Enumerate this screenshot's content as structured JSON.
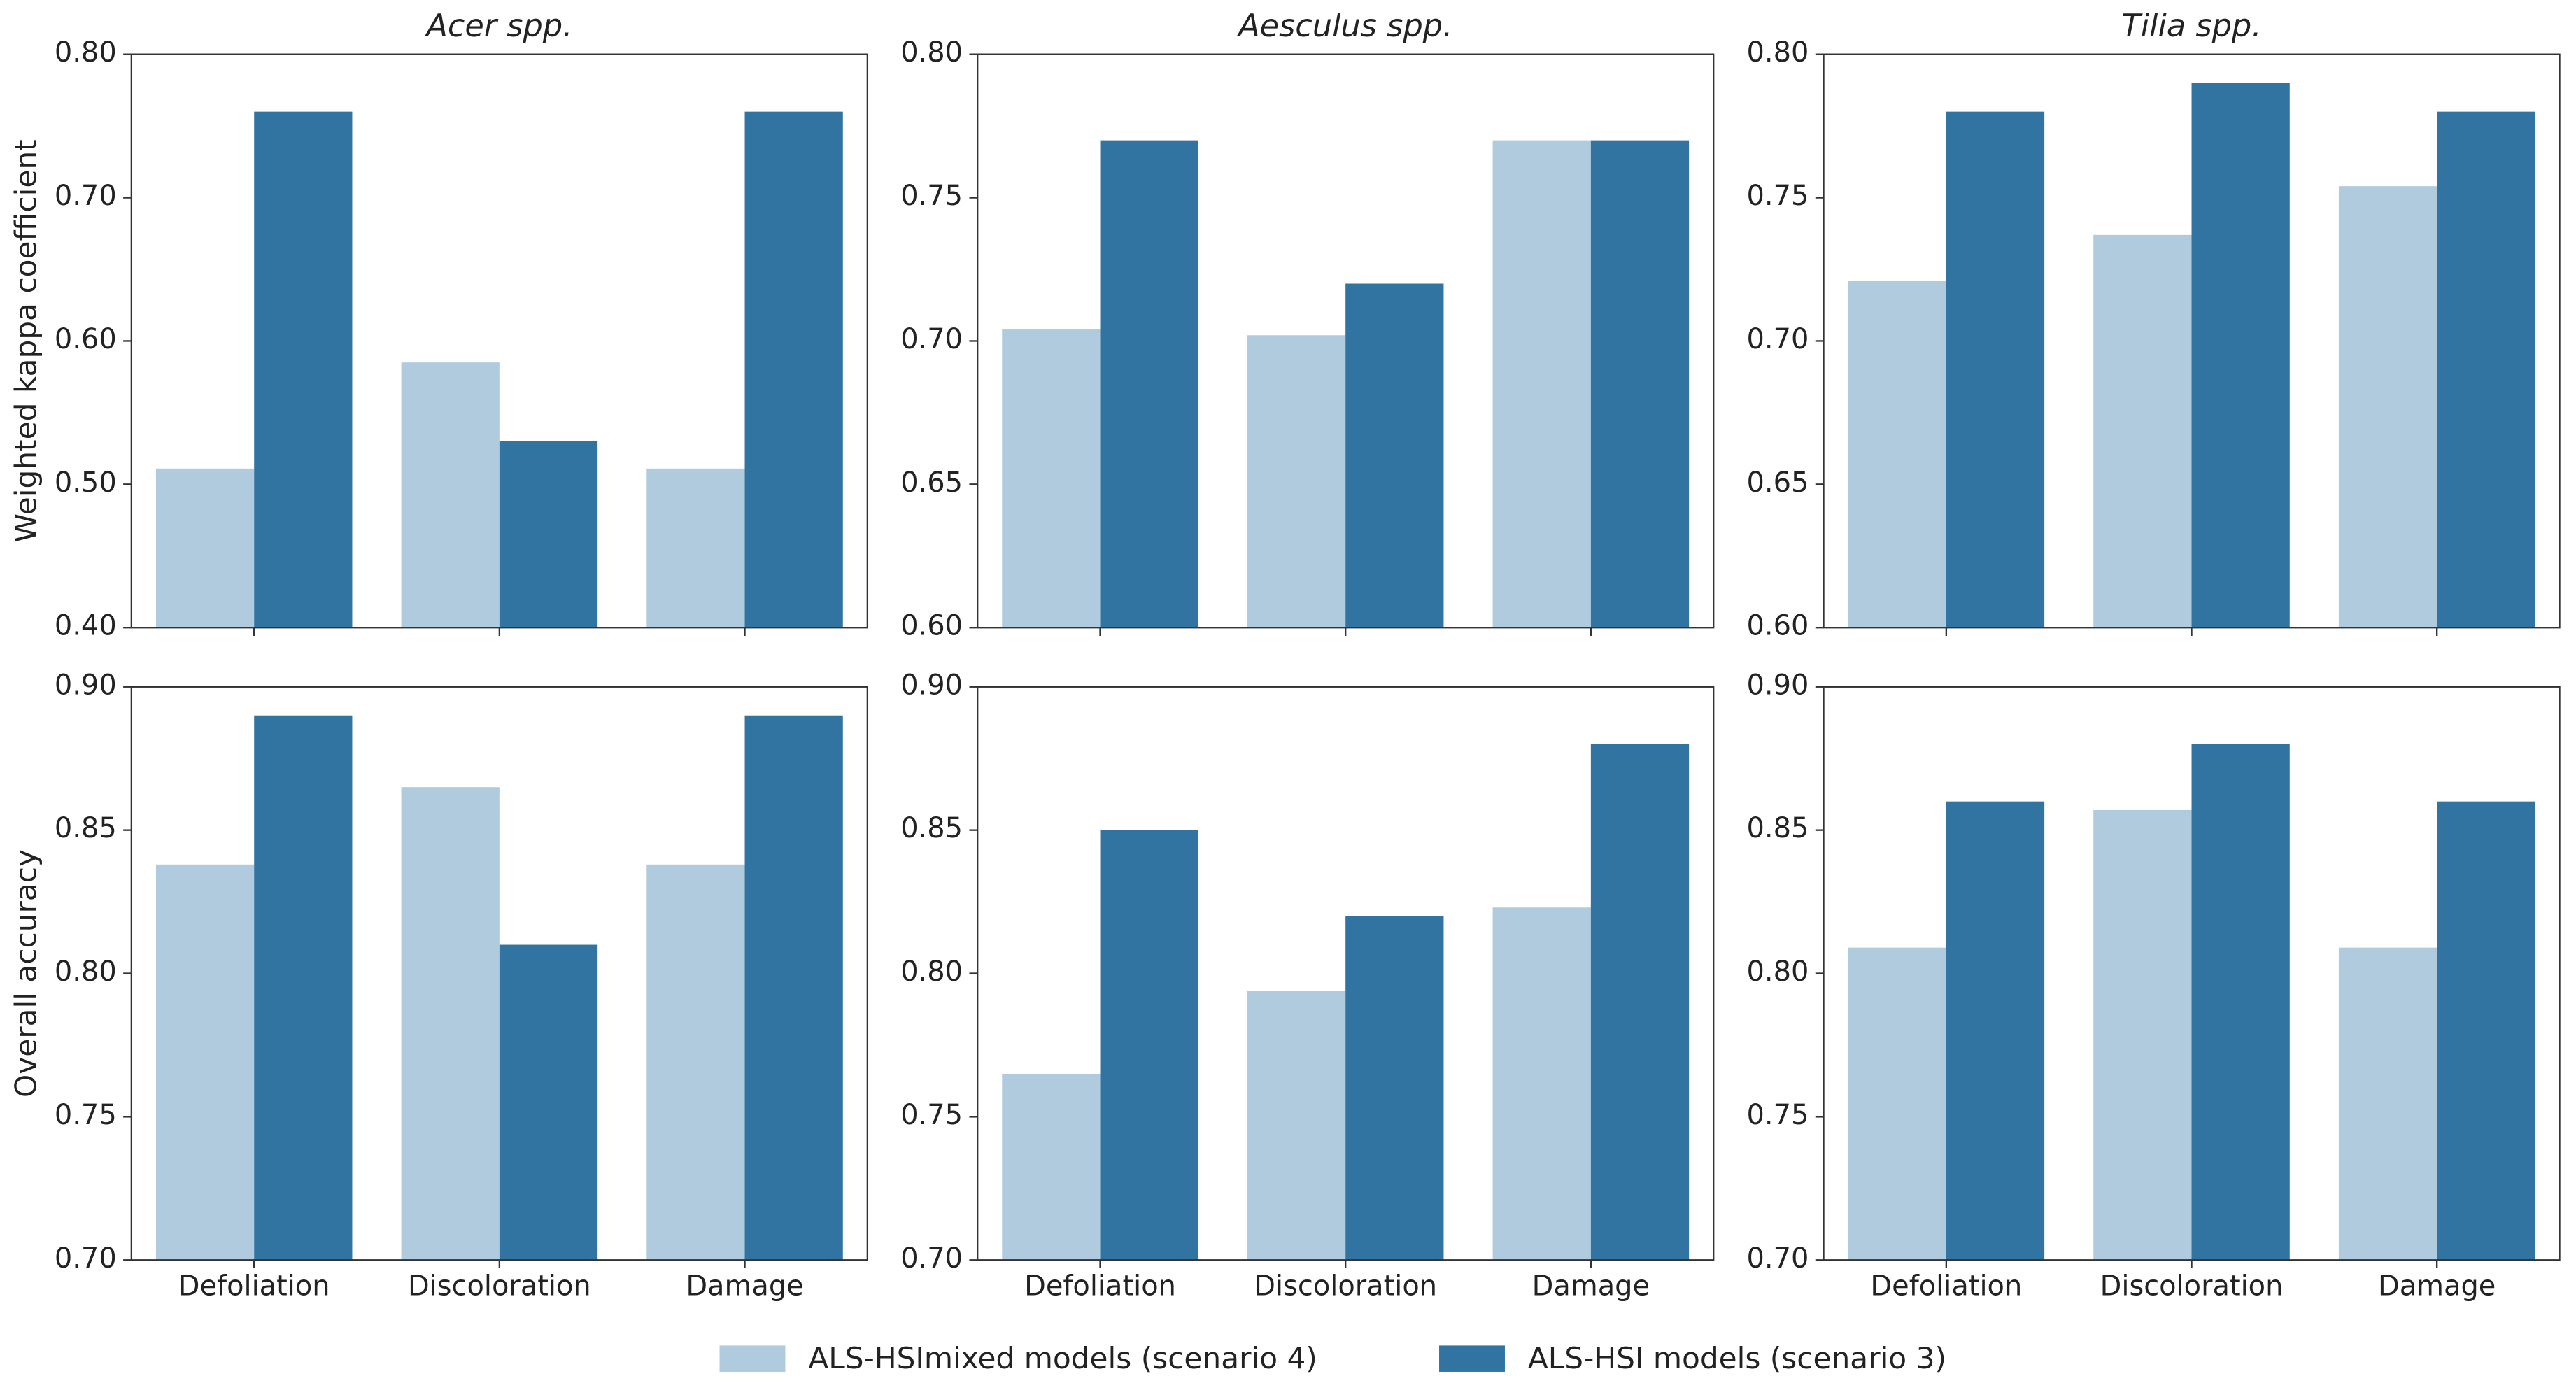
{
  "chart_data": [
    {
      "type": "bar",
      "title": "Acer spp.",
      "y_label": "Weighted kappa coefficient",
      "categories": [
        null,
        null,
        null
      ],
      "ylim": [
        0.4,
        0.8
      ],
      "yticks": [
        {
          "value": 0.4,
          "label": "0.40"
        },
        {
          "value": 0.5,
          "label": "0.50"
        },
        {
          "value": 0.6,
          "label": "0.60"
        },
        {
          "value": 0.7,
          "label": "0.70"
        },
        {
          "value": 0.8,
          "label": "0.80"
        }
      ],
      "series": [
        {
          "name": "ALS-HSImixed models (scenario 4)",
          "color": "#afcbdd",
          "values": [
            0.511,
            0.585,
            0.511
          ]
        },
        {
          "name": "ALS-HSI models (scenario 3)",
          "color": "#3274a1",
          "values": [
            0.76,
            0.53,
            0.76
          ]
        }
      ]
    },
    {
      "type": "bar",
      "title": "Aesculus spp.",
      "categories": [
        null,
        null,
        null
      ],
      "ylim": [
        0.6,
        0.8
      ],
      "yticks": [
        {
          "value": 0.6,
          "label": "0.60"
        },
        0.65,
        {
          "value": 0.7,
          "label": "0.70"
        },
        0.75,
        {
          "value": 0.8,
          "label": "0.80"
        }
      ],
      "series": [
        {
          "color": "#afcbdd",
          "values": [
            0.704,
            0.702,
            0.77
          ]
        },
        {
          "color": "#3274a1",
          "values": [
            0.77,
            0.72,
            0.77
          ]
        }
      ]
    },
    {
      "type": "bar",
      "title": "Tilia spp.",
      "categories": [
        null,
        null,
        null
      ],
      "ylim": [
        0.6,
        0.8
      ],
      "yticks": [
        {
          "value": 0.6,
          "label": "0.60"
        },
        0.65,
        {
          "value": 0.7,
          "label": "0.70"
        },
        0.75,
        {
          "value": 0.8,
          "label": "0.80"
        }
      ],
      "series": [
        {
          "color": "#afcbdd",
          "values": [
            0.721,
            0.737,
            0.754
          ]
        },
        {
          "color": "#3274a1",
          "values": [
            0.78,
            0.79,
            0.78
          ]
        }
      ]
    },
    {
      "type": "bar",
      "y_label": "Overall accuracy",
      "categories": [
        "Defoliation",
        "Discoloration",
        "Damage"
      ],
      "ylim": [
        0.7,
        0.9
      ],
      "yticks": [
        {
          "value": 0.7,
          "label": "0.70"
        },
        0.75,
        {
          "value": 0.8,
          "label": "0.80"
        },
        0.85,
        {
          "value": 0.9,
          "label": "0.90"
        }
      ],
      "series": [
        {
          "color": "#afcbdd",
          "values": [
            0.838,
            0.865,
            0.838
          ]
        },
        {
          "color": "#3274a1",
          "values": [
            0.89,
            0.81,
            0.89
          ]
        }
      ]
    },
    {
      "type": "bar",
      "categories": [
        "Defoliation",
        "Discoloration",
        "Damage"
      ],
      "ylim": [
        0.7,
        0.9
      ],
      "yticks": [
        {
          "value": 0.7,
          "label": "0.70"
        },
        0.75,
        {
          "value": 0.8,
          "label": "0.80"
        },
        0.85,
        {
          "value": 0.9,
          "label": "0.90"
        }
      ],
      "series": [
        {
          "color": "#afcbdd",
          "values": [
            0.765,
            0.794,
            0.823
          ]
        },
        {
          "color": "#3274a1",
          "values": [
            0.85,
            0.82,
            0.88
          ]
        }
      ]
    },
    {
      "type": "bar",
      "categories": [
        "Defoliation",
        "Discoloration",
        "Damage"
      ],
      "ylim": [
        0.7,
        0.9
      ],
      "yticks": [
        {
          "value": 0.7,
          "label": "0.70"
        },
        0.75,
        {
          "value": 0.8,
          "label": "0.80"
        },
        0.85,
        {
          "value": 0.9,
          "label": "0.90"
        }
      ],
      "series": [
        {
          "color": "#afcbdd",
          "values": [
            0.809,
            0.857,
            0.809
          ]
        },
        {
          "color": "#3274a1",
          "values": [
            0.86,
            0.88,
            0.86
          ]
        }
      ]
    }
  ]
}
